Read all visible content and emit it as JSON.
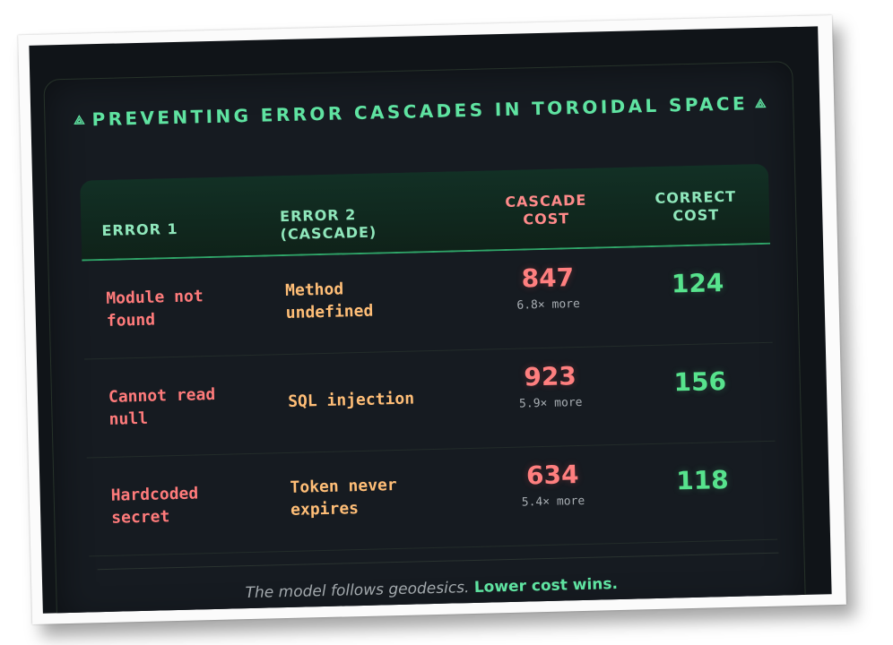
{
  "title": {
    "icon_left": "⟁",
    "text": "PREVENTING ERROR CASCADES IN TOROIDAL SPACE",
    "icon_right": "⟁"
  },
  "table": {
    "headers": {
      "error1": "ERROR 1",
      "error2": "ERROR 2\n(CASCADE)",
      "cascade_cost": "CASCADE\nCOST",
      "correct_cost": "CORRECT\nCOST"
    },
    "rows": [
      {
        "error1": "Module not\nfound",
        "error2": "Method\nundefined",
        "cascade_cost": "847",
        "multiplier": "6.8× more",
        "correct_cost": "124"
      },
      {
        "error1": "Cannot read\nnull",
        "error2": "SQL injection",
        "cascade_cost": "923",
        "multiplier": "5.9× more",
        "correct_cost": "156"
      },
      {
        "error1": "Hardcoded\nsecret",
        "error2": "Token never\nexpires",
        "cascade_cost": "634",
        "multiplier": "5.4× more",
        "correct_cost": "118"
      }
    ]
  },
  "footer": {
    "italic_text": "The model follows geodesics.",
    "bold_text": "Lower cost wins."
  },
  "colors": {
    "accent_green": "#5fe3a1",
    "cost_red": "#ff7f7f",
    "cascade_orange": "#ffbe77",
    "background": "#161b21"
  }
}
